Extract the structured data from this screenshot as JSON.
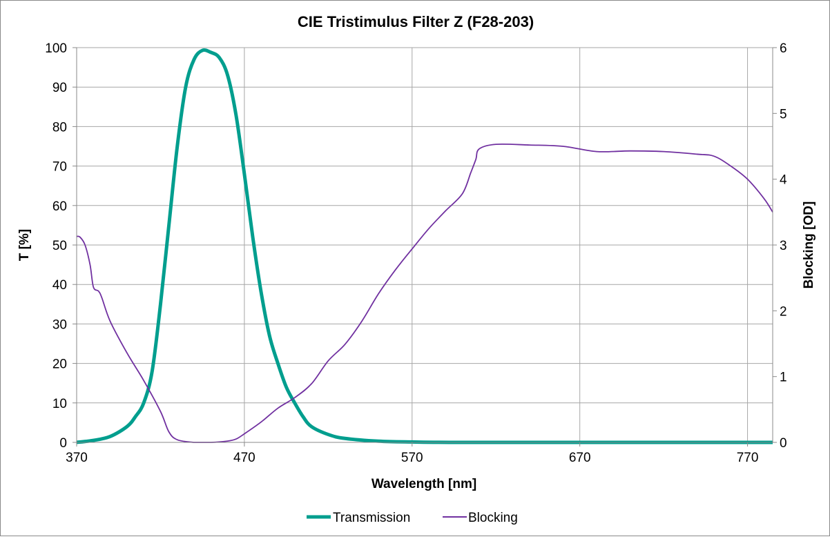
{
  "chart_data": {
    "type": "line",
    "title": "CIE Tristimulus Filter Z (F28-203)",
    "xlabel": "Wavelength [nm]",
    "ylabel": "T [%]",
    "y2label": "Blocking [OD]",
    "xlim": [
      370,
      785
    ],
    "ylim": [
      0,
      100
    ],
    "y2lim": [
      0,
      6
    ],
    "xticks": [
      "370",
      "470",
      "570",
      "670",
      "770"
    ],
    "yticks": [
      "0",
      "10",
      "20",
      "30",
      "40",
      "50",
      "60",
      "70",
      "80",
      "90",
      "100"
    ],
    "y2ticks": [
      "0",
      "1",
      "2",
      "3",
      "4",
      "5",
      "6"
    ],
    "grid": true,
    "legend": "bottom",
    "series": [
      {
        "name": "Transmission",
        "axis": "left",
        "color": "#009E8E",
        "x": [
          370,
          380,
          390,
          400,
          405,
          410,
          415,
          420,
          425,
          430,
          435,
          440,
          445,
          450,
          455,
          460,
          465,
          470,
          475,
          480,
          485,
          490,
          495,
          500,
          505,
          510,
          520,
          530,
          550,
          570,
          600,
          700,
          785
        ],
        "y": [
          0,
          0.5,
          1.5,
          4,
          6.5,
          10,
          18,
          35,
          55,
          75,
          90,
          97,
          99.3,
          98.8,
          97.5,
          93,
          83,
          68,
          52,
          38,
          27,
          20,
          14,
          10,
          6.5,
          4,
          2,
          1,
          0.3,
          0.1,
          0,
          0,
          0
        ]
      },
      {
        "name": "Blocking",
        "axis": "right",
        "color": "#7030A0",
        "x": [
          370,
          372,
          375,
          378,
          380,
          383,
          385,
          390,
          400,
          410,
          420,
          425,
          430,
          440,
          450,
          460,
          465,
          470,
          480,
          490,
          500,
          510,
          520,
          530,
          540,
          550,
          560,
          570,
          580,
          590,
          600,
          605,
          608,
          610,
          620,
          640,
          660,
          680,
          700,
          720,
          740,
          750,
          760,
          770,
          780,
          785
        ],
        "y": [
          3.13,
          3.12,
          3.0,
          2.7,
          2.36,
          2.3,
          2.2,
          1.84,
          1.36,
          0.94,
          0.47,
          0.16,
          0.04,
          0.0,
          0.0,
          0.02,
          0.05,
          0.13,
          0.31,
          0.52,
          0.68,
          0.89,
          1.24,
          1.49,
          1.84,
          2.26,
          2.62,
          2.94,
          3.25,
          3.52,
          3.78,
          4.1,
          4.3,
          4.46,
          4.53,
          4.52,
          4.5,
          4.42,
          4.43,
          4.42,
          4.38,
          4.35,
          4.2,
          4.0,
          3.7,
          3.5
        ]
      }
    ]
  }
}
